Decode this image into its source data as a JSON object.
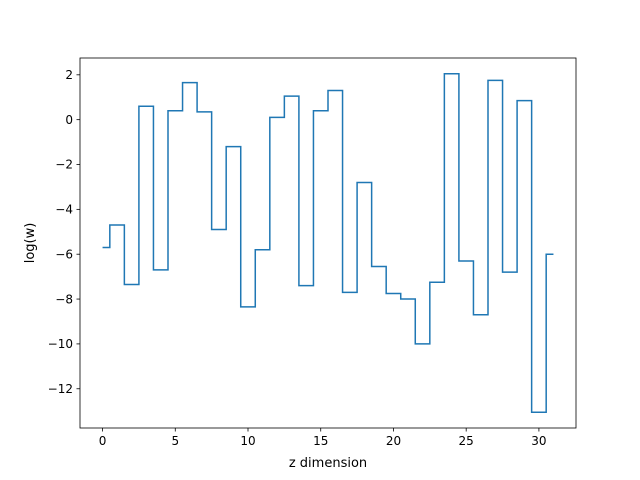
{
  "chart_data": {
    "type": "line",
    "drawstyle": "steps-mid",
    "title": "",
    "xlabel": "z dimension",
    "ylabel": "log(w)",
    "xlim": [
      -1.55,
      32.55
    ],
    "ylim": [
      -13.75,
      2.75
    ],
    "xticks": [
      0,
      5,
      10,
      15,
      20,
      25,
      30
    ],
    "xtick_labels": [
      "0",
      "5",
      "10",
      "15",
      "20",
      "25",
      "30"
    ],
    "yticks": [
      -12,
      -10,
      -8,
      -6,
      -4,
      -2,
      0,
      2
    ],
    "ytick_labels": [
      "−12",
      "−10",
      "−8",
      "−6",
      "−4",
      "−2",
      "0",
      "2"
    ],
    "grid": false,
    "legend": false,
    "series": [
      {
        "color": "#1f77b4",
        "x": [
          0,
          1,
          2,
          3,
          4,
          5,
          6,
          7,
          8,
          9,
          10,
          11,
          12,
          13,
          14,
          15,
          16,
          17,
          18,
          19,
          20,
          21,
          22,
          23,
          24,
          25,
          26,
          27,
          28,
          29,
          30,
          31
        ],
        "y": [
          -5.7,
          -4.7,
          -7.35,
          0.6,
          -6.7,
          0.4,
          1.65,
          0.35,
          -4.9,
          -1.2,
          -8.35,
          -5.8,
          0.1,
          1.05,
          -7.4,
          0.4,
          1.3,
          -7.7,
          -2.8,
          -6.55,
          -7.75,
          -8.0,
          -10.0,
          -7.25,
          2.05,
          -6.3,
          -8.7,
          1.75,
          -6.8,
          0.85,
          -13.05,
          -6.0
        ]
      }
    ]
  }
}
